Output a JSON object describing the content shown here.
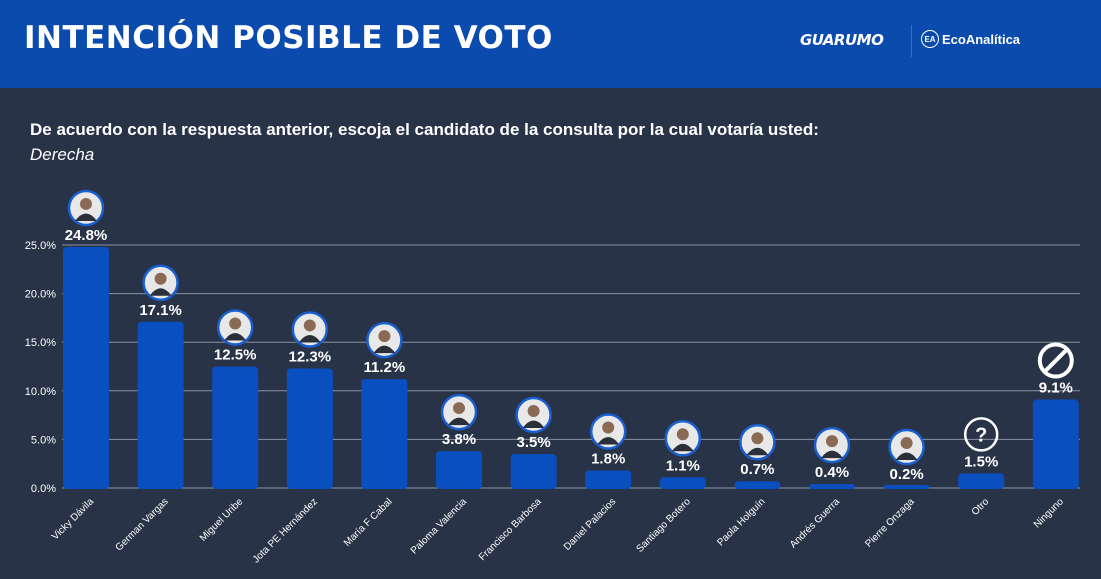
{
  "header": {
    "title": "INTENCIÓN POSIBLE DE VOTO",
    "logos": [
      "GUARUMO",
      "EcoAnalítica"
    ],
    "background": "#0b4bae"
  },
  "question": "De acuerdo con  la respuesta anterior, escoja el candidato de la consulta por la cual votaría usted:",
  "subtitle": "Derecha",
  "chart_data": {
    "type": "bar",
    "categories": [
      "Vicky Dávila",
      "German Vargas",
      "Miguel Uribe",
      "Jota PE Hernández",
      "María F Cabal",
      "Paloma Valencia",
      "Francisco Barbosa",
      "Daniel Palacios",
      "Santiago Botero",
      "Paola Holguín",
      "Andrés Guerra",
      "Pierre Onzaga",
      "Otro",
      "Ninguno"
    ],
    "values": [
      24.8,
      17.1,
      12.5,
      12.3,
      11.2,
      3.8,
      3.5,
      1.8,
      1.1,
      0.7,
      0.4,
      0.2,
      1.5,
      9.1
    ],
    "data_labels": [
      "24.8%",
      "17.1%",
      "12.5%",
      "12.3%",
      "11.2%",
      "3.8%",
      "3.5%",
      "1.8%",
      "1.1%",
      "0.7%",
      "0.4%",
      "0.2%",
      "1.5%",
      "9.1%"
    ],
    "icons": [
      "candidate-photo",
      "candidate-photo",
      "candidate-photo",
      "candidate-photo",
      "candidate-photo",
      "candidate-photo",
      "candidate-photo",
      "candidate-photo",
      "candidate-photo",
      "candidate-photo",
      "candidate-photo",
      "candidate-photo",
      "question-icon",
      "prohibited-icon"
    ],
    "yticks": [
      "0.0%",
      "5.0%",
      "10.0%",
      "15.0%",
      "20.0%",
      "25.0%"
    ],
    "ylim": [
      0,
      25
    ],
    "grid": true,
    "bar_color": "#0a4fc0",
    "xlabel": "",
    "ylabel": ""
  }
}
